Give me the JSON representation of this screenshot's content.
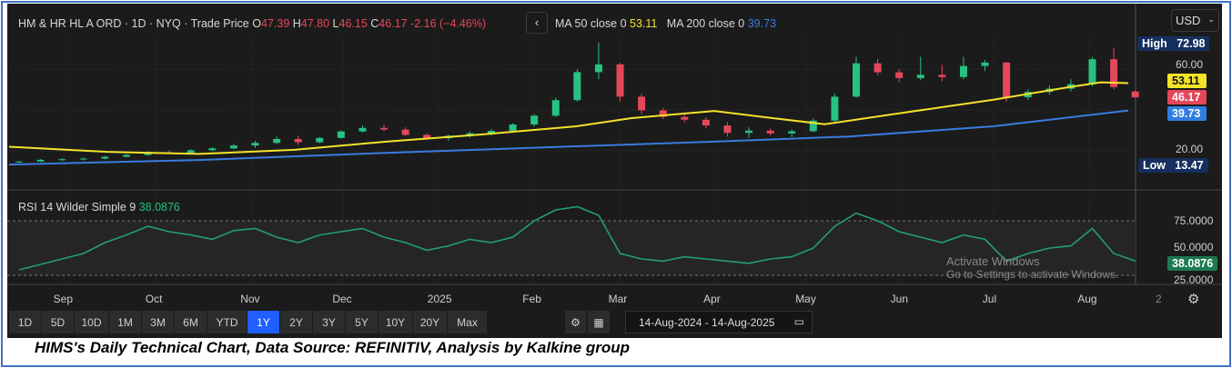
{
  "header": {
    "instrument": "HM & HR HL A ORD · 1D · NYQ · Trade Price",
    "o_label": "O",
    "o": "47.39",
    "h_label": "H",
    "h": "47.80",
    "l_label": "L",
    "l": "46.15",
    "c_label": "C",
    "c": "46.17",
    "change": "-2.16 (−4.46%)",
    "ma50_label": "MA 50 close 0",
    "ma50_value": "53.11",
    "ma200_label": "MA 200 close 0",
    "ma200_value": "39.73",
    "currency": "USD"
  },
  "price_axis": {
    "ticks": [
      "60.00",
      "20.00"
    ],
    "high_label": "High",
    "high": "72.98",
    "low_label": "Low",
    "low": "13.47",
    "last_ma50": "53.11",
    "last_close": "46.17",
    "last_ma200": "39.73"
  },
  "rsi": {
    "label": "RSI 14 Wilder Simple 9",
    "value": "38.0876",
    "ticks": [
      "75.0000",
      "50.0000",
      "25.0000"
    ]
  },
  "x_axis": {
    "labels": [
      [
        "2024-09-01",
        "Sep"
      ],
      [
        "2024-10-01",
        "Oct"
      ],
      [
        "2024-11-01",
        "Nov"
      ],
      [
        "2024-12-01",
        "Dec"
      ],
      [
        "2025-01-01",
        "2025"
      ],
      [
        "2025-02-01",
        "Feb"
      ],
      [
        "2025-03-01",
        "Mar"
      ],
      [
        "2025-04-01",
        "Apr"
      ],
      [
        "2025-05-01",
        "May"
      ],
      [
        "2025-06-01",
        "Jun"
      ],
      [
        "2025-07-01",
        "Jul"
      ],
      [
        "2025-08-01",
        "Aug"
      ]
    ]
  },
  "watermark": {
    "line1": "Activate Windows",
    "line2": "Go to Settings to activate Windows."
  },
  "toolbar": {
    "ranges": [
      "1D",
      "5D",
      "10D",
      "1M",
      "3M",
      "6M",
      "YTD",
      "1Y",
      "2Y",
      "3Y",
      "5Y",
      "10Y",
      "20Y",
      "Max"
    ],
    "selected": "1Y",
    "date_range": "14-Aug-2024 - 14-Aug-2025"
  },
  "caption": "HIMS's Daily Technical Chart, Data Source: REFINITIV, Analysis by Kalkine group",
  "colors": {
    "up": "#26c281",
    "down": "#e5475a",
    "ma50": "#f5e32a",
    "ma200": "#3a7be0",
    "rsi": "#22a06b",
    "accent": "#1f5eff"
  },
  "chart_data": {
    "type": "candlestick",
    "ylim": [
      10,
      78
    ],
    "rsi_ylim": [
      20,
      95
    ],
    "candles_weekly_ohlc": [
      [
        "2024-08-14",
        14.5,
        15.2,
        14.0,
        14.8
      ],
      [
        "2024-08-21",
        14.8,
        16,
        14.5,
        15.6
      ],
      [
        "2024-08-28",
        15.6,
        16.5,
        15,
        15.9
      ],
      [
        "2024-09-04",
        15.9,
        16.8,
        15.3,
        16.2
      ],
      [
        "2024-09-11",
        16.2,
        17.5,
        15.8,
        17.1
      ],
      [
        "2024-09-18",
        17.1,
        18.4,
        16.8,
        18.0
      ],
      [
        "2024-09-25",
        18,
        19.8,
        17.6,
        19.2
      ],
      [
        "2024-10-02",
        19.2,
        20.4,
        18.5,
        19.0
      ],
      [
        "2024-10-09",
        19,
        20.8,
        18.8,
        20.3
      ],
      [
        "2024-10-16",
        20.3,
        21.8,
        19.9,
        21.2
      ],
      [
        "2024-10-23",
        21.2,
        23.5,
        20.8,
        22.6
      ],
      [
        "2024-10-30",
        22.6,
        25,
        21.5,
        23.9
      ],
      [
        "2024-11-06",
        23.9,
        27,
        23.2,
        25.8
      ],
      [
        "2024-11-13",
        25.8,
        27.5,
        22.8,
        24.2
      ],
      [
        "2024-11-20",
        24.2,
        26.8,
        23.8,
        26.3
      ],
      [
        "2024-11-27",
        26.3,
        30,
        26,
        29.5
      ],
      [
        "2024-12-04",
        29.5,
        32.5,
        29,
        31.2
      ],
      [
        "2024-12-11",
        31.2,
        32.8,
        29.5,
        30.4
      ],
      [
        "2024-12-18",
        30.4,
        31.5,
        27,
        27.8
      ],
      [
        "2024-12-25",
        27.8,
        28.5,
        25.5,
        26.2
      ],
      [
        "2025-01-01",
        26.2,
        28,
        25,
        27.4
      ],
      [
        "2025-01-08",
        27.4,
        29.5,
        26.5,
        28.6
      ],
      [
        "2025-01-15",
        28.6,
        30.5,
        27.5,
        29.8
      ],
      [
        "2025-01-22",
        29.8,
        33.5,
        29.2,
        32.9
      ],
      [
        "2025-01-29",
        32.9,
        38,
        32,
        37.2
      ],
      [
        "2025-02-05",
        37.2,
        46,
        36.5,
        44.8
      ],
      [
        "2025-02-12",
        44.8,
        60,
        44,
        58.5
      ],
      [
        "2025-02-19",
        58.5,
        72.98,
        55,
        62.3
      ],
      [
        "2025-02-26",
        62.3,
        63,
        44,
        46.5
      ],
      [
        "2025-03-05",
        46.5,
        48,
        38,
        39.8
      ],
      [
        "2025-03-12",
        39.8,
        41,
        35.5,
        36.6
      ],
      [
        "2025-03-19",
        36.6,
        38,
        34,
        35.2
      ],
      [
        "2025-03-26",
        35.2,
        36.5,
        31,
        32.4
      ],
      [
        "2025-04-02",
        32.4,
        34,
        27,
        28.8
      ],
      [
        "2025-04-09",
        28.8,
        31.5,
        26.5,
        29.9
      ],
      [
        "2025-04-16",
        29.9,
        31,
        27.5,
        28.5
      ],
      [
        "2025-04-23",
        28.5,
        30.5,
        26.8,
        29.6
      ],
      [
        "2025-04-30",
        29.6,
        36,
        29,
        34.8
      ],
      [
        "2025-05-07",
        34.8,
        48,
        34,
        46.5
      ],
      [
        "2025-05-14",
        46.5,
        66,
        46,
        62.8
      ],
      [
        "2025-05-21",
        62.8,
        65,
        57,
        58.4
      ],
      [
        "2025-05-28",
        58.4,
        60,
        53.5,
        55.6
      ],
      [
        "2025-06-04",
        55.6,
        66,
        54.5,
        57.2
      ],
      [
        "2025-06-11",
        57.2,
        62,
        54,
        56.1
      ],
      [
        "2025-06-18",
        56.1,
        66,
        55,
        61.5
      ],
      [
        "2025-06-25",
        61.5,
        64.5,
        59,
        63.2
      ],
      [
        "2025-07-02",
        63.2,
        63.5,
        44,
        46.2
      ],
      [
        "2025-07-09",
        46.2,
        50,
        45,
        48.8
      ],
      [
        "2025-07-16",
        48.8,
        52,
        47.5,
        50.4
      ],
      [
        "2025-07-23",
        50.4,
        55,
        49,
        52.6
      ],
      [
        "2025-07-30",
        52.6,
        66,
        51.5,
        64.8
      ],
      [
        "2025-08-06",
        64.8,
        70.5,
        50,
        51.2
      ],
      [
        "2025-08-13",
        49,
        49.5,
        45.8,
        46.17
      ]
    ],
    "ma50": [
      [
        "2024-08-14",
        22
      ],
      [
        "2024-09-15",
        19.5
      ],
      [
        "2024-10-15",
        18.5
      ],
      [
        "2024-11-15",
        20.5
      ],
      [
        "2024-12-15",
        24.5
      ],
      [
        "2025-01-15",
        28
      ],
      [
        "2025-02-15",
        32
      ],
      [
        "2025-03-05",
        36
      ],
      [
        "2025-04-01",
        39.5
      ],
      [
        "2025-04-20",
        36
      ],
      [
        "2025-05-07",
        33
      ],
      [
        "2025-06-01",
        38.5
      ],
      [
        "2025-07-01",
        45
      ],
      [
        "2025-07-25",
        51
      ],
      [
        "2025-08-05",
        53.5
      ],
      [
        "2025-08-14",
        53.11
      ]
    ],
    "ma200": [
      [
        "2024-08-14",
        13.3
      ],
      [
        "2024-10-15",
        15.5
      ],
      [
        "2024-12-15",
        19
      ],
      [
        "2025-02-01",
        21.5
      ],
      [
        "2025-04-01",
        24.5
      ],
      [
        "2025-05-15",
        27
      ],
      [
        "2025-07-01",
        32
      ],
      [
        "2025-08-14",
        39.73
      ]
    ],
    "rsi": [
      30,
      35,
      40,
      45,
      55,
      62,
      70,
      65,
      62,
      58,
      66,
      68,
      60,
      55,
      62,
      65,
      68,
      60,
      55,
      48,
      52,
      58,
      55,
      60,
      75,
      85,
      88,
      80,
      45,
      40,
      38,
      42,
      40,
      38,
      36,
      40,
      42,
      50,
      70,
      82,
      75,
      65,
      60,
      55,
      62,
      58,
      38,
      45,
      50,
      52,
      68,
      45,
      38.09
    ]
  }
}
